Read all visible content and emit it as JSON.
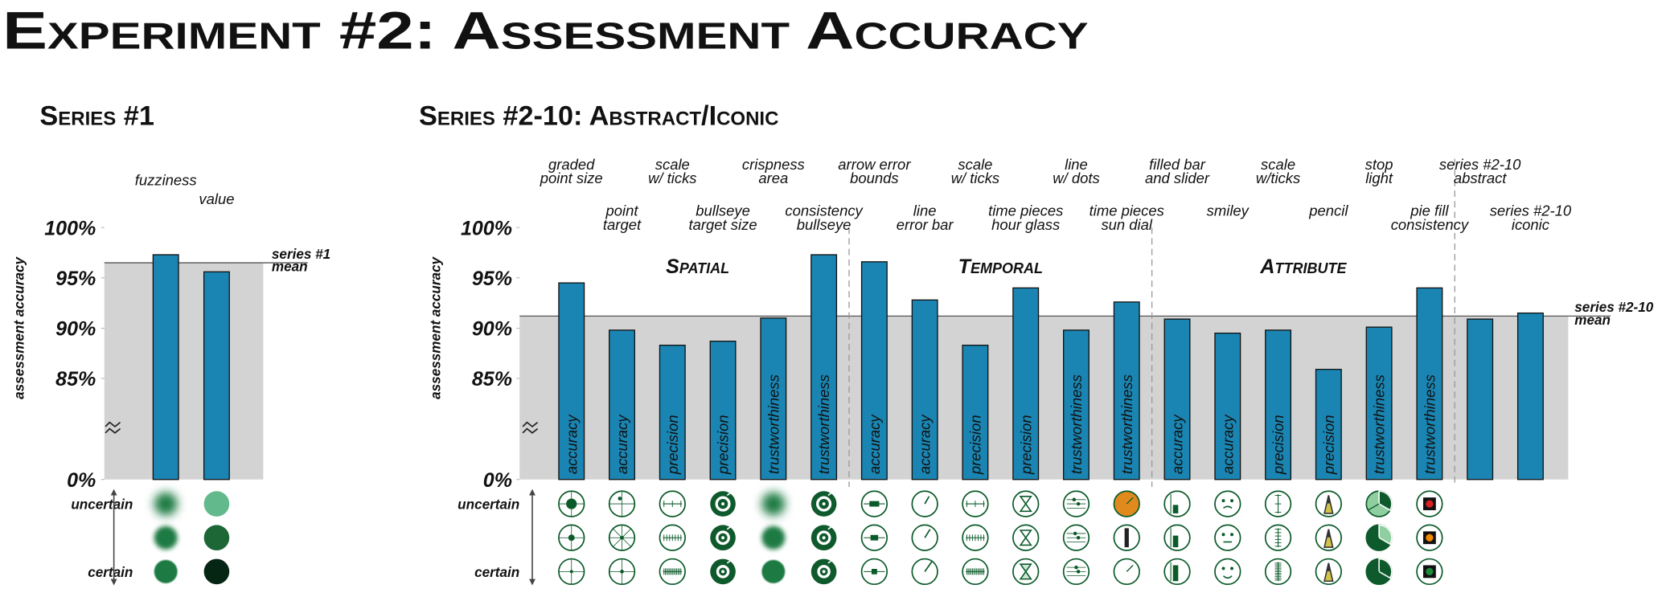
{
  "title": "Experiment #2: Assessment Accuracy",
  "chart_data": [
    {
      "type": "bar",
      "subtitle": "Series #1",
      "y_label": "assessment accuracy",
      "categories": [
        [
          "fuzziness"
        ],
        [
          "value"
        ]
      ],
      "values": [
        97.3,
        95.6
      ],
      "color": "#1a85b2",
      "ylim": [
        0,
        100
      ],
      "axis_break": 80,
      "yticks": [
        {
          "value": 0,
          "label": "0%"
        },
        {
          "value": 85,
          "label": "85%"
        },
        {
          "value": 90,
          "label": "90%"
        },
        {
          "value": 95,
          "label": "95%"
        },
        {
          "value": 100,
          "label": "100%"
        }
      ],
      "mean": {
        "value": 96.5,
        "label": [
          "series #1",
          "mean"
        ]
      },
      "uncertainty_labels": [
        "uncertain",
        "certain"
      ]
    },
    {
      "type": "bar",
      "subtitle": "Series #2-10: Abstract/Iconic",
      "y_label": "assessment accuracy",
      "categories": [
        [
          "graded",
          "point size"
        ],
        [
          "point",
          "target"
        ],
        [
          "scale",
          "w/ ticks"
        ],
        [
          "bullseye",
          "target size"
        ],
        [
          "crispness",
          "area"
        ],
        [
          "consistency",
          "bullseye"
        ],
        [
          "arrow error",
          "bounds"
        ],
        [
          "line",
          "error bar"
        ],
        [
          "scale",
          "w/ ticks"
        ],
        [
          "time pieces",
          "hour glass"
        ],
        [
          "line",
          "w/ dots"
        ],
        [
          "time pieces",
          "sun dial"
        ],
        [
          "filled bar",
          "and slider"
        ],
        [
          "smiley"
        ],
        [
          "scale",
          "w/ticks"
        ],
        [
          "pencil"
        ],
        [
          "stop",
          "light"
        ],
        [
          "pie fill",
          "consistency"
        ],
        [
          "series #2-10",
          "abstract"
        ],
        [
          "series #2-10",
          "iconic"
        ]
      ],
      "values": [
        94.5,
        89.8,
        88.3,
        88.7,
        91.0,
        97.3,
        96.6,
        92.8,
        88.3,
        94.0,
        89.8,
        92.6,
        90.9,
        89.5,
        89.8,
        85.9,
        90.1,
        94.0,
        90.9,
        91.5
      ],
      "bar_labels": [
        "accuracy",
        "accuracy",
        "precision",
        "precision",
        "trustworthiness",
        "trustworthiness",
        "accuracy",
        "accuracy",
        "precision",
        "precision",
        "trustworthiness",
        "trustworthiness",
        "accuracy",
        "accuracy",
        "precision",
        "precision",
        "trustworthiness",
        "trustworthiness",
        null,
        null
      ],
      "groups": [
        {
          "name": "Spatial",
          "count": 6
        },
        {
          "name": "Temporal",
          "count": 6
        },
        {
          "name": "Attribute",
          "count": 6
        }
      ],
      "color": "#1a85b2",
      "ylim": [
        0,
        100
      ],
      "axis_break": 80,
      "yticks": [
        {
          "value": 0,
          "label": "0%"
        },
        {
          "value": 85,
          "label": "85%"
        },
        {
          "value": 90,
          "label": "90%"
        },
        {
          "value": 95,
          "label": "95%"
        },
        {
          "value": 100,
          "label": "100%"
        }
      ],
      "mean": {
        "value": 91.2,
        "label": [
          "series #2-10",
          "mean"
        ]
      },
      "uncertainty_labels": [
        "uncertain",
        "certain"
      ]
    }
  ]
}
